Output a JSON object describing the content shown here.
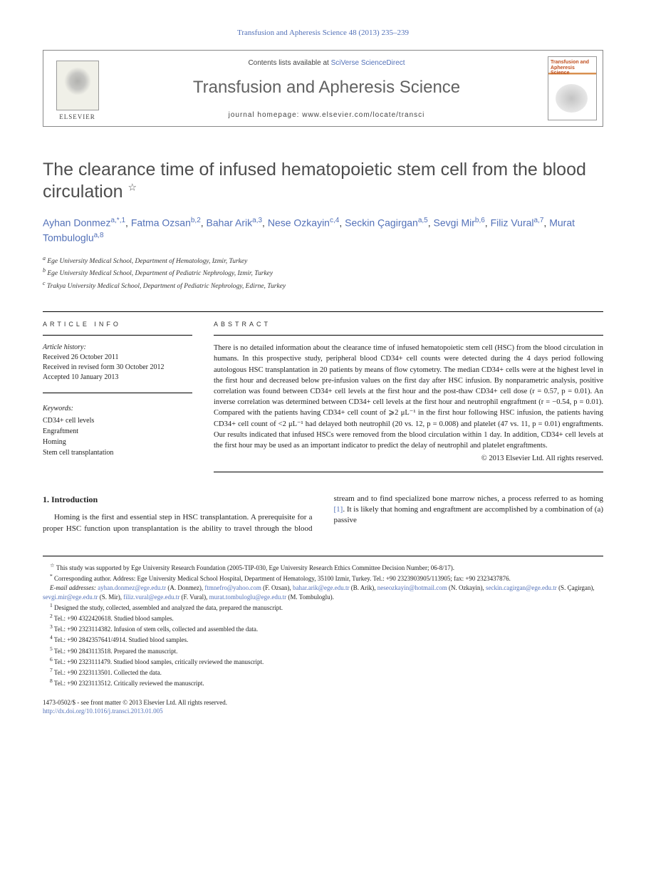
{
  "journal_ref": "Transfusion and Apheresis Science 48 (2013) 235–239",
  "header": {
    "publisher": "ELSEVIER",
    "contents_prefix": "Contents lists available at ",
    "contents_link": "SciVerse ScienceDirect",
    "journal_name": "Transfusion and Apheresis Science",
    "homepage_prefix": "journal homepage: ",
    "homepage_url": "www.elsevier.com/locate/transci",
    "cover_title": "Transfusion and Apheresis Science"
  },
  "title": "The clearance time of infused hematopoietic stem cell from the blood circulation",
  "title_note_sym": "☆",
  "authors": [
    {
      "name": "Ayhan Donmez",
      "sup": "a,*,1"
    },
    {
      "name": "Fatma Ozsan",
      "sup": "b,2"
    },
    {
      "name": "Bahar Arik",
      "sup": "a,3"
    },
    {
      "name": "Nese Ozkayin",
      "sup": "c,4"
    },
    {
      "name": "Seckin Çagirgan",
      "sup": "a,5"
    },
    {
      "name": "Sevgi Mir",
      "sup": "b,6"
    },
    {
      "name": "Filiz Vural",
      "sup": "a,7"
    },
    {
      "name": "Murat Tombuloglu",
      "sup": "a,8"
    }
  ],
  "affiliations": [
    {
      "sup": "a",
      "text": "Ege University Medical School, Department of Hematology, Izmir, Turkey"
    },
    {
      "sup": "b",
      "text": "Ege University Medical School, Department of Pediatric Nephrology, Izmir, Turkey"
    },
    {
      "sup": "c",
      "text": "Trakya University Medical School, Department of Pediatric Nephrology, Edirne, Turkey"
    }
  ],
  "info_head": "ARTICLE INFO",
  "abstract_head": "ABSTRACT",
  "history": {
    "label": "Article history:",
    "received": "Received 26 October 2011",
    "revised": "Received in revised form 30 October 2012",
    "accepted": "Accepted 10 January 2013"
  },
  "keywords": {
    "label": "Keywords:",
    "items": [
      "CD34+ cell levels",
      "Engraftment",
      "Homing",
      "Stem cell transplantation"
    ]
  },
  "abstract": "There is no detailed information about the clearance time of infused hematopoietic stem cell (HSC) from the blood circulation in humans. In this prospective study, peripheral blood CD34+ cell counts were detected during the 4 days period following autologous HSC transplantation in 20 patients by means of flow cytometry. The median CD34+ cells were at the highest level in the first hour and decreased below pre-infusion values on the first day after HSC infusion. By nonparametric analysis, positive correlation was found between CD34+ cell levels at the first hour and the post-thaw CD34+ cell dose (r = 0.57, p = 0.01). An inverse correlation was determined between CD34+ cell levels at the first hour and neutrophil engraftment (r = −0.54, p = 0.01). Compared with the patients having CD34+ cell count of ⩾2 μL⁻¹ in the first hour following HSC infusion, the patients having CD34+ cell count of <2 μL⁻¹ had delayed both neutrophil (20 vs. 12, p = 0.008) and platelet (47 vs. 11, p = 0.01) engraftments. Our results indicated that infused HSCs were removed from the blood circulation within 1 day. In addition, CD34+ cell levels at the first hour may be used as an important indicator to predict the delay of neutrophil and platelet engraftments.",
  "copyright": "© 2013 Elsevier Ltd. All rights reserved.",
  "intro_head": "1. Introduction",
  "intro_p1": "Homing is the first and essential step in HSC transplantation. A prerequisite for a proper HSC function upon trans",
  "intro_p2_a": "plantation is the ability to travel through the blood stream and to find specialized bone marrow niches, a process referred to as homing ",
  "intro_ref": "[1]",
  "intro_p2_b": ". It is likely that homing and engraftment are accomplished by a combination of (a) passive",
  "footnotes": {
    "star": "This study was supported by Ege University Research Foundation (2005-TIP-030, Ege University Research Ethics Committee Decision Number; 06-8/17).",
    "corr": "Corresponding author. Address: Ege University Medical School Hospital, Department of Hematology, 35100 Izmir, Turkey. Tel.: +90 2323903905/113905; fax: +90 2323437876.",
    "email_label": "E-mail addresses:",
    "emails": [
      {
        "addr": "ayhan.donmez@ege.edu.tr",
        "who": "(A. Donmez)"
      },
      {
        "addr": "ftmnefro@yahoo.com",
        "who": "(F. Ozsan)"
      },
      {
        "addr": "bahar.arik@ege.edu.tr",
        "who": "(B. Arik)"
      },
      {
        "addr": "neseozkayin@hotmail.com",
        "who": "(N. Ozkayin)"
      },
      {
        "addr": "seckin.cagirgan@ege.edu.tr",
        "who": "(S. Çagirgan)"
      },
      {
        "addr": "sevgi.mir@ege.edu.tr",
        "who": "(S. Mir)"
      },
      {
        "addr": "filiz.vural@ege.edu.tr",
        "who": "(F. Vural)"
      },
      {
        "addr": "murat.tombuloglu@ege.edu.tr",
        "who": "(M. Tombuloglu)"
      }
    ],
    "notes": [
      {
        "n": "1",
        "text": "Designed the study, collected, assembled and analyzed the data, prepared the manuscript."
      },
      {
        "n": "2",
        "text": "Tel.: +90 4322420618. Studied blood samples."
      },
      {
        "n": "3",
        "text": "Tel.: +90 2323114382. Infusion of stem cells, collected and assembled the data."
      },
      {
        "n": "4",
        "text": "Tel.: +90 2842357641/4914. Studied blood samples."
      },
      {
        "n": "5",
        "text": "Tel.: +90 2843113518. Prepared the manuscript."
      },
      {
        "n": "6",
        "text": "Tel.: +90 2323111479. Studied blood samples, critically reviewed the manuscript."
      },
      {
        "n": "7",
        "text": "Tel.: +90 2323113501. Collected the data."
      },
      {
        "n": "8",
        "text": "Tel.: +90 2323113512. Critically reviewed the manuscript."
      }
    ]
  },
  "footer": {
    "issn": "1473-0502/$ - see front matter © 2013 Elsevier Ltd. All rights reserved.",
    "doi": "http://dx.doi.org/10.1016/j.transci.2013.01.005"
  },
  "colors": {
    "link": "#5371b8",
    "heading": "#4d4d4d",
    "text": "#222222"
  }
}
